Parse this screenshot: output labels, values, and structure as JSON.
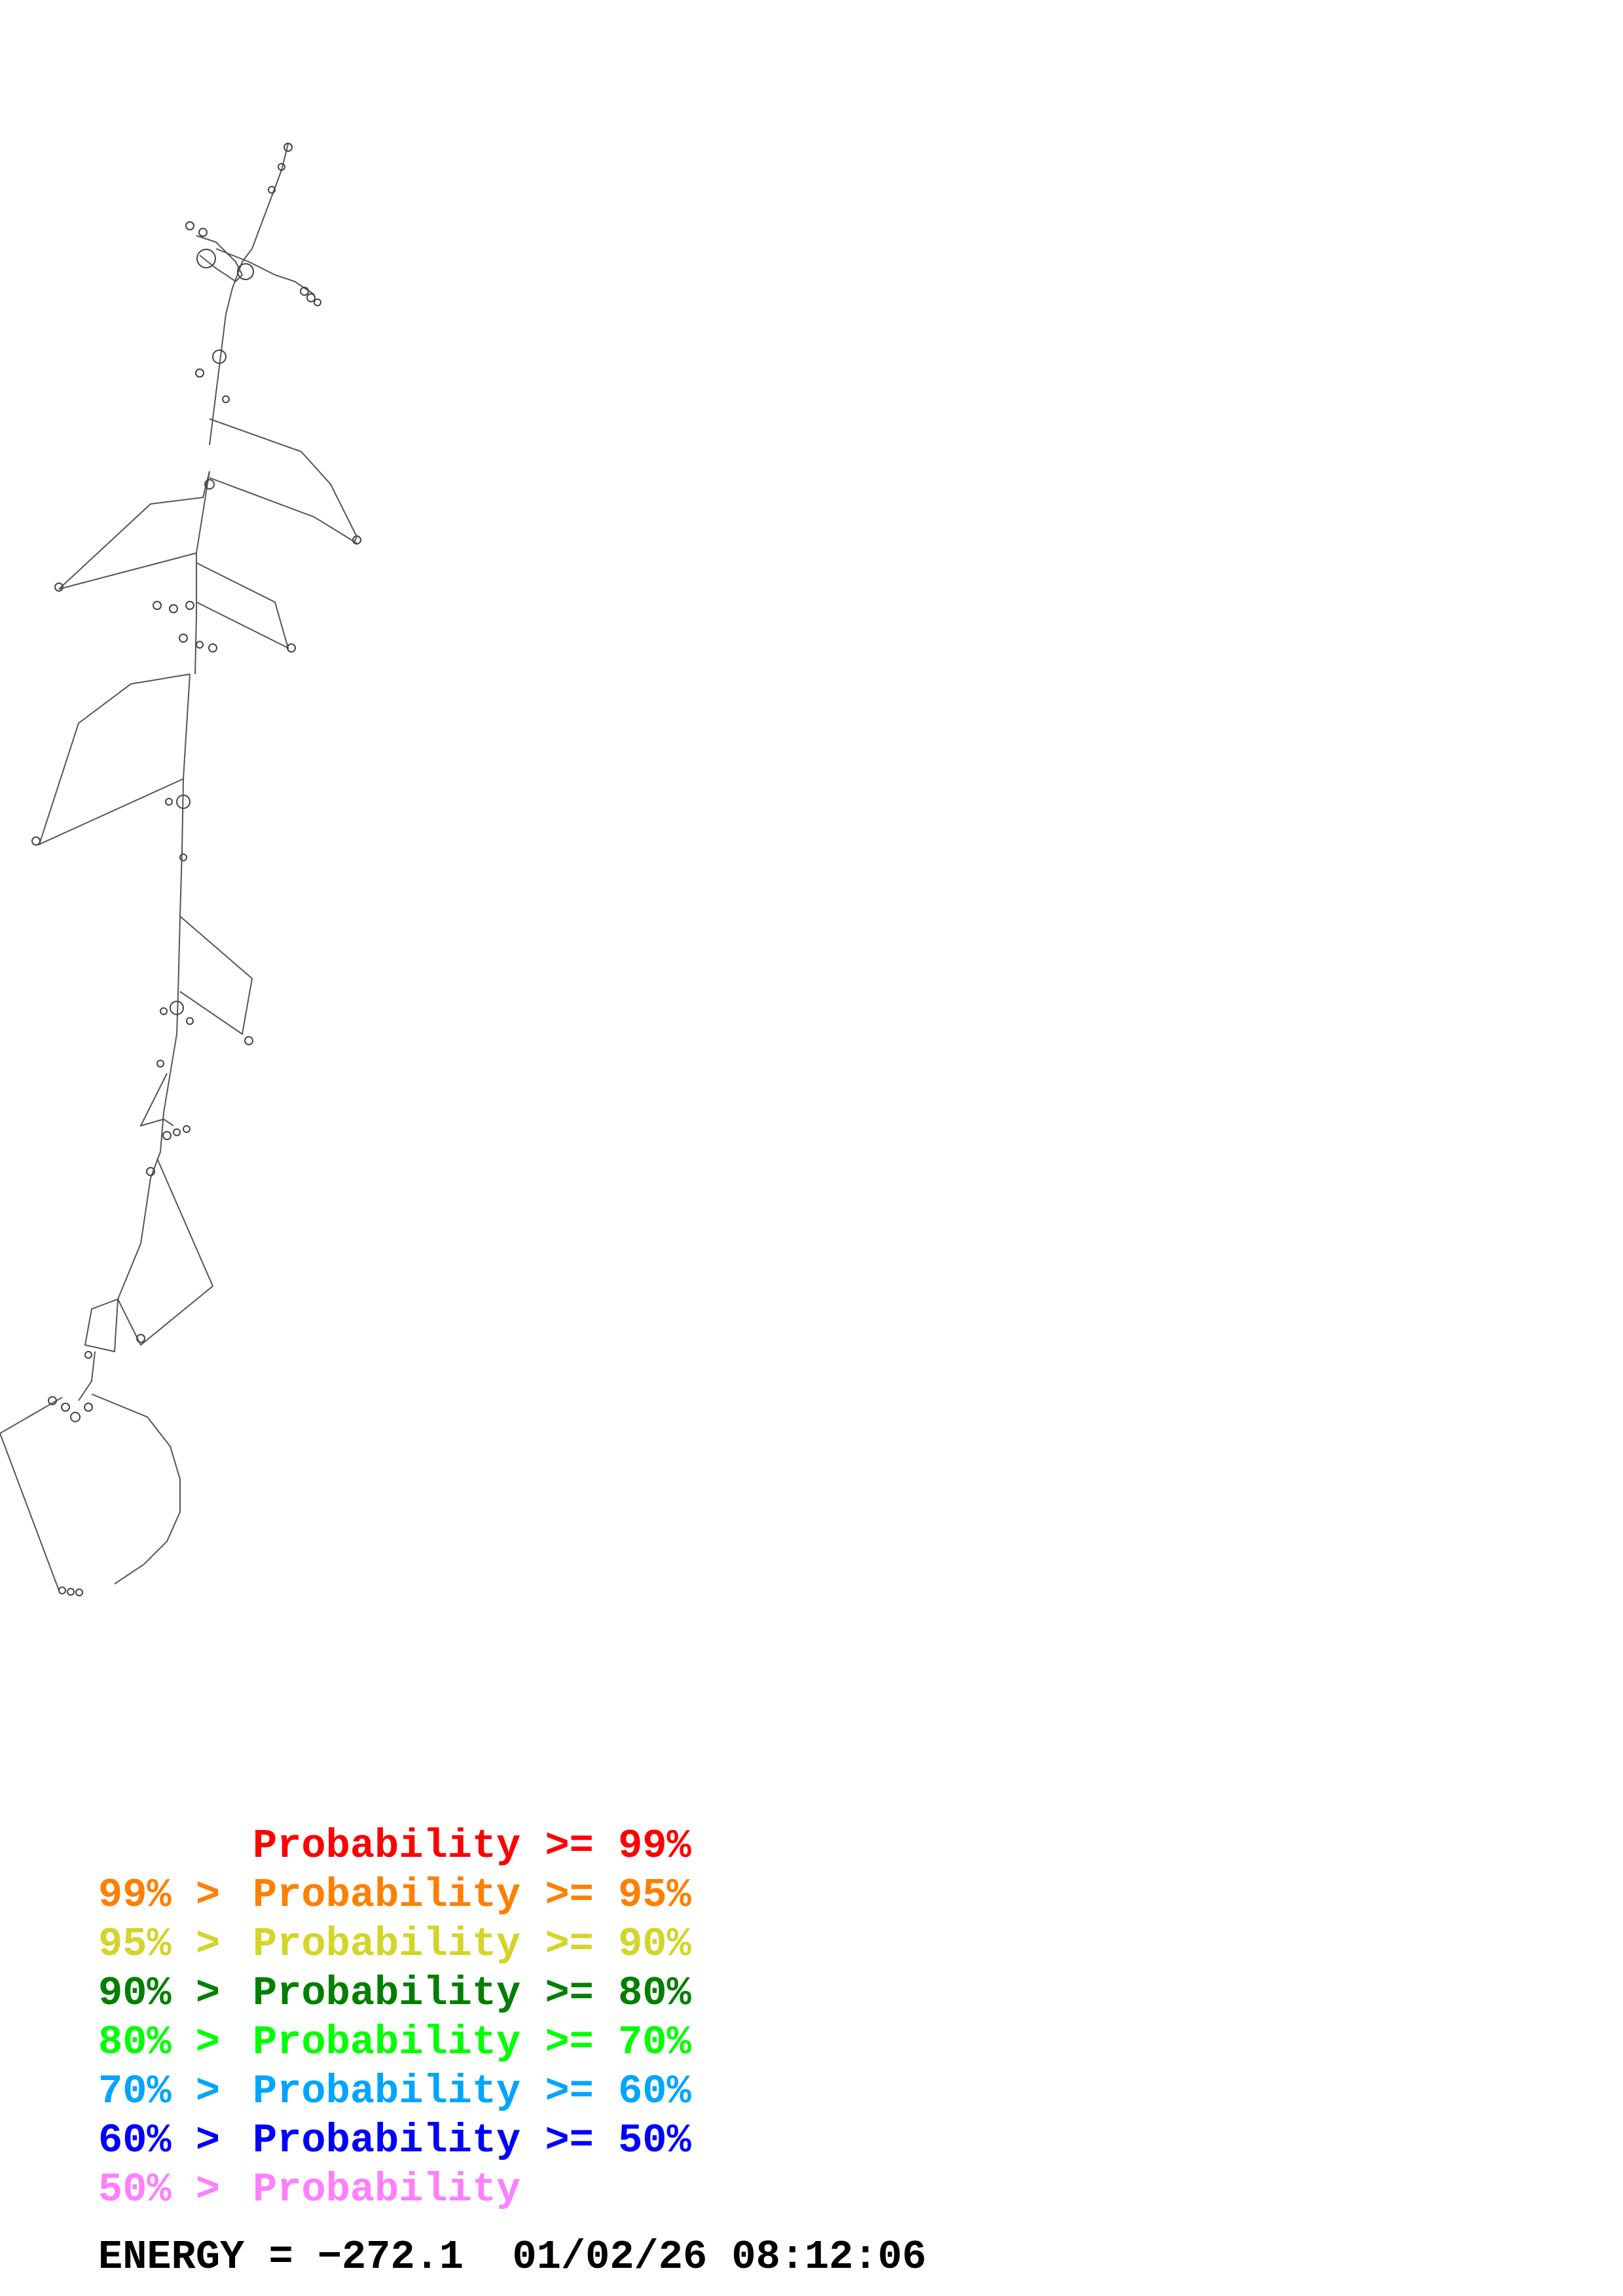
{
  "legend": [
    {
      "prefix": "",
      "label": "Probability >= 99%",
      "color": "#ff0000"
    },
    {
      "prefix": "99% > ",
      "label": "Probability >= 95%",
      "color": "#ff7f00"
    },
    {
      "prefix": "95% > ",
      "label": "Probability >= 90%",
      "color": "#d4d42a"
    },
    {
      "prefix": "90% > ",
      "label": "Probability >= 80%",
      "color": "#007f00"
    },
    {
      "prefix": "80% > ",
      "label": "Probability >= 70%",
      "color": "#00ff00"
    },
    {
      "prefix": "70% > ",
      "label": "Probability >= 60%",
      "color": "#00a5ff"
    },
    {
      "prefix": "60% > ",
      "label": "Probability >= 50%",
      "color": "#0000ff"
    },
    {
      "prefix": "50% > ",
      "label": "Probability",
      "color": "#ff7fff"
    }
  ],
  "energy": {
    "text": "ENERGY = −272.1  01/02/26 08:12:06"
  },
  "structure_color": "#555555"
}
